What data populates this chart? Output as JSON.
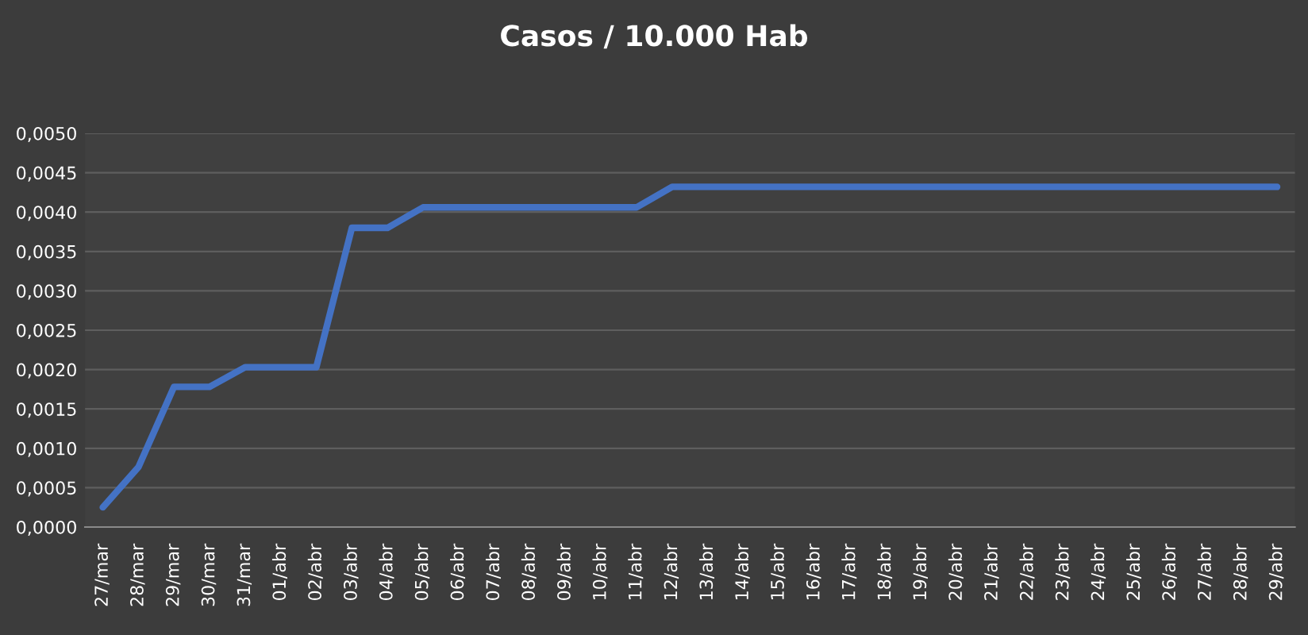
{
  "chart_data": {
    "type": "line",
    "title": "Casos / 10.000 Hab",
    "categories": [
      "27/mar",
      "28/mar",
      "29/mar",
      "30/mar",
      "31/mar",
      "01/abr",
      "02/abr",
      "03/abr",
      "04/abr",
      "05/abr",
      "06/abr",
      "07/abr",
      "08/abr",
      "09/abr",
      "10/abr",
      "11/abr",
      "12/abr",
      "13/abr",
      "14/abr",
      "15/abr",
      "16/abr",
      "17/abr",
      "18/abr",
      "19/abr",
      "20/abr",
      "21/abr",
      "22/abr",
      "23/abr",
      "24/abr",
      "25/abr",
      "26/abr",
      "27/abr",
      "28/abr",
      "29/abr"
    ],
    "series": [
      {
        "color": "#4472c4",
        "values": [
          0.00025,
          0.00076,
          0.00178,
          0.00178,
          0.00203,
          0.00203,
          0.00203,
          0.0038,
          0.0038,
          0.00406,
          0.00406,
          0.00406,
          0.00406,
          0.00406,
          0.00406,
          0.00406,
          0.00432,
          0.00432,
          0.00432,
          0.00432,
          0.00432,
          0.00432,
          0.00432,
          0.00432,
          0.00432,
          0.00432,
          0.00432,
          0.00432,
          0.00432,
          0.00432,
          0.00432,
          0.00432,
          0.00432,
          0.00432
        ]
      }
    ],
    "ylim": [
      0,
      0.005
    ],
    "yticks": [
      {
        "value": 0,
        "label": "0,0000"
      },
      {
        "value": 0.0005,
        "label": "0,0005"
      },
      {
        "value": 0.001,
        "label": "0,0010"
      },
      {
        "value": 0.0015,
        "label": "0,0015"
      },
      {
        "value": 0.002,
        "label": "0,0020"
      },
      {
        "value": 0.0025,
        "label": "0,0025"
      },
      {
        "value": 0.003,
        "label": "0,0030"
      },
      {
        "value": 0.0035,
        "label": "0,0035"
      },
      {
        "value": 0.004,
        "label": "0,0040"
      },
      {
        "value": 0.0045,
        "label": "0,0045"
      },
      {
        "value": 0.005,
        "label": "0,0050"
      }
    ],
    "grid": "y",
    "line_style": "solid",
    "marker": "none"
  }
}
